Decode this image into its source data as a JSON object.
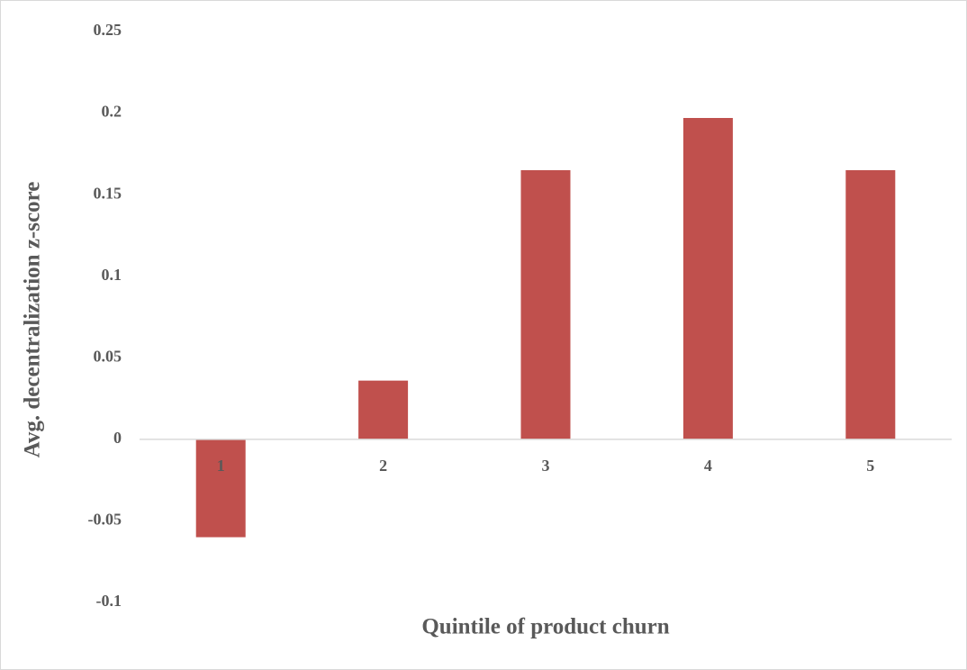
{
  "chart_data": {
    "type": "bar",
    "x_label": "Quintile of product churn",
    "y_label": "Avg. decentralization z-score",
    "categories": [
      "1",
      "2",
      "3",
      "4",
      "5"
    ],
    "values": [
      -0.06,
      0.036,
      0.165,
      0.197,
      0.165
    ],
    "color": "#c0504d",
    "ylim": [
      -0.1,
      0.25
    ],
    "yticks": [
      -0.1,
      -0.05,
      0,
      0.05,
      0.1,
      0.15,
      0.2,
      0.25
    ],
    "grid": false
  }
}
